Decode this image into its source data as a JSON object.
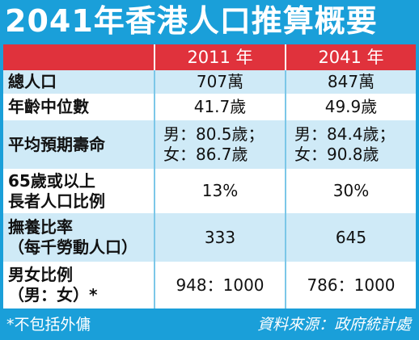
{
  "header": {
    "title": "2041年香港人口推算概要"
  },
  "table": {
    "columns": [
      "2011 年",
      "2041 年"
    ],
    "rows": [
      {
        "label": [
          "總人口"
        ],
        "cells": [
          [
            "707萬"
          ],
          [
            "847萬"
          ]
        ]
      },
      {
        "label": [
          "年齡中位數"
        ],
        "cells": [
          [
            "41.7歲"
          ],
          [
            "49.9歲"
          ]
        ]
      },
      {
        "label": [
          "平均預期壽命"
        ],
        "cells": [
          [
            "男：80.5歲；",
            "女：86.7歲"
          ],
          [
            "男：84.4歲；",
            "女：90.8歲"
          ]
        ]
      },
      {
        "label": [
          "65歲或以上",
          "長者人口比例"
        ],
        "cells": [
          [
            "13%"
          ],
          [
            "30%"
          ]
        ]
      },
      {
        "label": [
          "撫養比率",
          "（每千勞動人口）"
        ],
        "cells": [
          [
            "333"
          ],
          [
            "645"
          ]
        ]
      },
      {
        "label": [
          "男女比例",
          "（男：女）*"
        ],
        "cells": [
          [
            "948：1000"
          ],
          [
            "786：1000"
          ]
        ]
      }
    ]
  },
  "footer": {
    "note": "*不包括外傭",
    "source": "資料來源：政府統計處"
  }
}
